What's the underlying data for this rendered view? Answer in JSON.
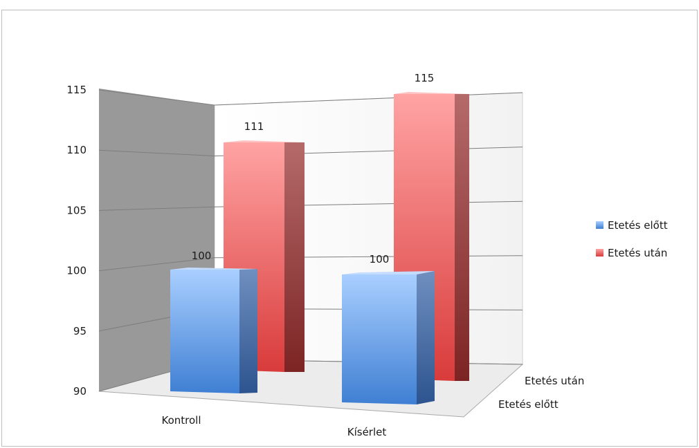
{
  "chart_data": {
    "type": "bar",
    "categories": [
      "Kontroll",
      "Kísérlet"
    ],
    "series": [
      {
        "name": "Etetés előtt",
        "values": [
          100,
          100
        ],
        "color": "#4f8fdc"
      },
      {
        "name": "Etetés után",
        "values": [
          111,
          115
        ],
        "color": "#e0474b"
      }
    ],
    "depth_labels": [
      "Etetés után",
      "Etetés előtt"
    ],
    "ylim": [
      90,
      115
    ],
    "yticks": [
      "90",
      "95",
      "100",
      "105",
      "110",
      "115"
    ],
    "data_labels": [
      "100",
      "111",
      "100",
      "115"
    ],
    "grid": true,
    "legend": "right",
    "projection": "3d"
  }
}
